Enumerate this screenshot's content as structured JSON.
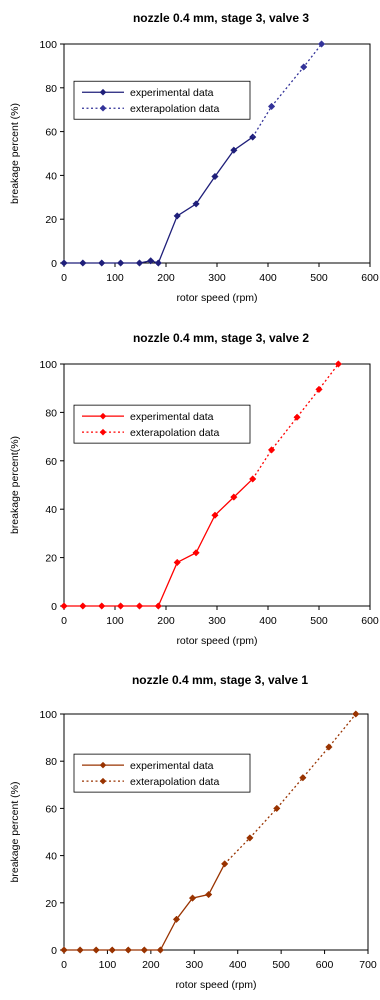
{
  "chart_data": [
    {
      "type": "line",
      "title": "nozzle 0.4 mm, stage 3, valve 3",
      "xlabel": "rotor speed (rpm)",
      "ylabel": "breakage percent (%)",
      "xlim": [
        0,
        600
      ],
      "ylim": [
        0,
        100
      ],
      "xticks": [
        "0",
        "100",
        "200",
        "300",
        "400",
        "500",
        "600"
      ],
      "yticks": [
        "0",
        "20",
        "40",
        "60",
        "80",
        "100"
      ],
      "legend_position": "upper-left",
      "grid": false,
      "series": [
        {
          "name": "experimental data",
          "color": "#1f1f7a",
          "style": "solid",
          "x": [
            0,
            37,
            74,
            111,
            148,
            170,
            185,
            222,
            259,
            296,
            333,
            370
          ],
          "y": [
            0,
            0,
            0,
            0,
            0,
            1,
            0,
            21.5,
            27,
            39.5,
            51.5,
            57.5
          ]
        },
        {
          "name": "exterapolation data",
          "color": "#333399",
          "style": "dotted",
          "x": [
            370,
            407,
            470,
            505
          ],
          "y": [
            57.5,
            71.5,
            89.5,
            100
          ]
        }
      ]
    },
    {
      "type": "line",
      "title": "nozzle 0.4 mm, stage 3, valve 2",
      "xlabel": "rotor speed (rpm)",
      "ylabel": "breakage percent(%)",
      "xlim": [
        0,
        600
      ],
      "ylim": [
        0,
        100
      ],
      "xticks": [
        "0",
        "100",
        "200",
        "300",
        "400",
        "500",
        "600"
      ],
      "yticks": [
        "0",
        "20",
        "40",
        "60",
        "80",
        "100"
      ],
      "legend_position": "upper-left",
      "grid": false,
      "series": [
        {
          "name": "experimental data",
          "color": "#ff0000",
          "style": "solid",
          "x": [
            0,
            37,
            74,
            111,
            148,
            185,
            222,
            259,
            296,
            333,
            370
          ],
          "y": [
            0,
            0,
            0,
            0,
            0,
            0,
            18,
            22,
            37.5,
            45,
            52.5
          ]
        },
        {
          "name": "exterapolation data",
          "color": "#ff0000",
          "style": "dotted",
          "x": [
            370,
            407,
            457,
            500,
            538
          ],
          "y": [
            52.5,
            64.5,
            78,
            89.5,
            100
          ]
        }
      ]
    },
    {
      "type": "line",
      "title": "nozzle 0.4 mm, stage 3, valve 1",
      "xlabel": "rotor speed (rpm)",
      "ylabel": "breakage percent (%)",
      "xlim": [
        0,
        700
      ],
      "ylim": [
        0,
        100
      ],
      "xticks": [
        "0",
        "100",
        "200",
        "300",
        "400",
        "500",
        "600",
        "700"
      ],
      "yticks": [
        "0",
        "20",
        "40",
        "60",
        "80",
        "100"
      ],
      "legend_position": "upper-left",
      "grid": false,
      "series": [
        {
          "name": "experimental data",
          "color": "#993300",
          "style": "solid",
          "x": [
            0,
            37,
            74,
            111,
            148,
            185,
            222,
            259,
            296,
            333,
            370
          ],
          "y": [
            0,
            0,
            0,
            0,
            0,
            0,
            0,
            13,
            22,
            23.5,
            36.5
          ]
        },
        {
          "name": "exterapolation data",
          "color": "#993300",
          "style": "dotted",
          "x": [
            370,
            428,
            490,
            550,
            610,
            672
          ],
          "y": [
            36.5,
            47.5,
            60,
            73,
            86,
            100
          ]
        }
      ]
    }
  ]
}
